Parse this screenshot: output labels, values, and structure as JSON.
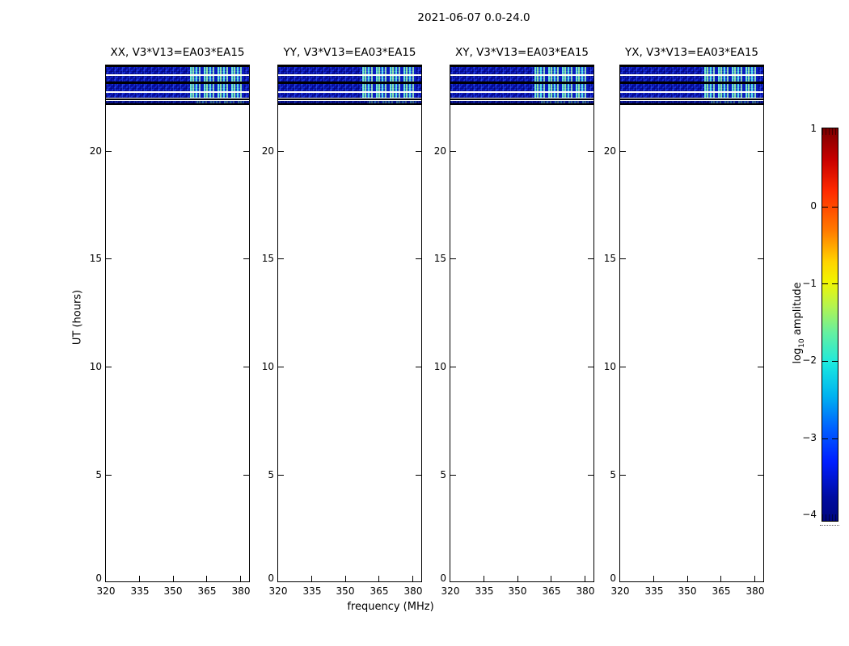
{
  "figure": {
    "title": "2021-06-07 0.0-24.0",
    "xlabel": "frequency (MHz)",
    "ylabel": "UT (hours)"
  },
  "panels": [
    {
      "title": "XX, V3*V13=EA03*EA15"
    },
    {
      "title": "YY, V3*V13=EA03*EA15"
    },
    {
      "title": "XY, V3*V13=EA03*EA15"
    },
    {
      "title": "YX, V3*V13=EA03*EA15"
    }
  ],
  "axes": {
    "x_ticks": [
      "320",
      "335",
      "350",
      "365",
      "380"
    ],
    "y_ticks": [
      "0",
      "5",
      "10",
      "15",
      "20"
    ]
  },
  "colorbar": {
    "label_pre": "log",
    "label_sub": "10",
    "label_post": " amplitude",
    "ticks": [
      "1",
      "0",
      "−1",
      "−2",
      "−3",
      "−4"
    ]
  },
  "colors": {
    "background_noise_blue": "#0c1ac6",
    "bright_patch_cyan": "#50e6d2",
    "bright_patch_green": "#8cf0a0",
    "colormap": "jet"
  },
  "chart_data": {
    "type": "heatmap",
    "title": "2021-06-07 0.0-24.0",
    "xlabel": "frequency (MHz)",
    "ylabel": "UT (hours)",
    "xlim": [
      320,
      384
    ],
    "ylim": [
      0,
      24
    ],
    "x_ticks": [
      320,
      335,
      350,
      365,
      380
    ],
    "y_ticks": [
      0,
      5,
      10,
      15,
      20
    ],
    "grid": false,
    "colorbar": {
      "label": "log10 amplitude",
      "range": [
        -4,
        1
      ],
      "ticks": [
        1,
        0,
        -1,
        -2,
        -3,
        -4
      ],
      "colormap": "jet",
      "position": "right"
    },
    "panels": [
      "XX, V3*V13=EA03*EA15",
      "YY, V3*V13=EA03*EA15",
      "XY, V3*V13=EA03*EA15",
      "YX, V3*V13=EA03*EA15"
    ],
    "coverage": {
      "data_time_range_ut": [
        22.3,
        24.0
      ],
      "empty_time_range_ut": [
        0,
        22.3
      ],
      "background_log10_amplitude": -3.0,
      "white_gap_lines_ut": [
        22.6,
        22.9,
        23.25,
        23.6
      ],
      "thin_low_band_ut": [
        22.35,
        22.45
      ],
      "rfi_bright_patches": {
        "freq_range_mhz": [
          358,
          382
        ],
        "log10_amplitude_range": [
          -2.2,
          -1.2
        ],
        "n_clusters": 4,
        "present_in_all_panels": true
      }
    }
  }
}
